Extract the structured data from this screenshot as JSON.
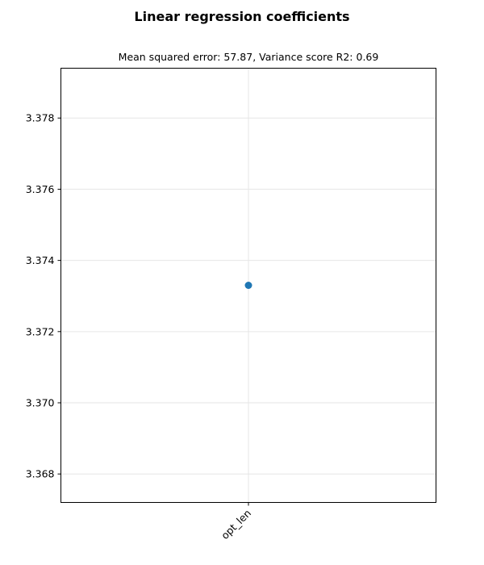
{
  "figure": {
    "title": "Linear regression coefficients"
  },
  "chart_data": {
    "type": "scatter",
    "title": "Mean squared error: 57.87, Variance score R2: 0.69",
    "xlabel": "",
    "ylabel": "",
    "categories": [
      "opt_len"
    ],
    "series": [
      {
        "values": [
          3.3733
        ]
      }
    ],
    "ylim": [
      3.3672,
      3.3794
    ],
    "yticks": [
      3.368,
      3.37,
      3.372,
      3.374,
      3.376,
      3.378
    ],
    "ytick_labels": [
      "3.368",
      "3.370",
      "3.372",
      "3.374",
      "3.376",
      "3.378"
    ],
    "grid": true,
    "x_tick_rotation": "45 degrees",
    "colors": {
      "marker": "#1f77b4",
      "grid": "#e6e6e6",
      "axes": "#000000"
    }
  }
}
